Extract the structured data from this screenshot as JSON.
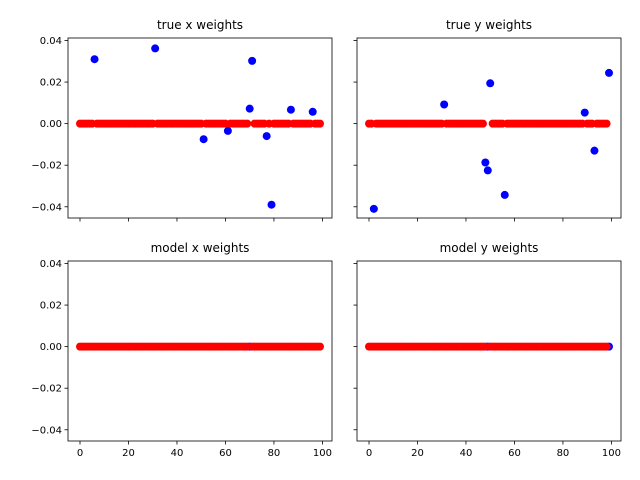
{
  "chart_data": [
    {
      "type": "scatter",
      "title": "true x weights",
      "xlim": [
        -4.95,
        103.95
      ],
      "ylim": [
        -0.0454,
        0.0412
      ],
      "xticks": [
        0,
        20,
        40,
        60,
        80,
        100
      ],
      "yticks": [
        -0.04,
        -0.02,
        0.0,
        0.02,
        0.04
      ],
      "show_xticklabels": false,
      "show_yticklabels": true,
      "series": [
        {
          "color": "#0000ff",
          "points": [
            [
              6,
              0.031
            ],
            [
              31,
              0.0362
            ],
            [
              51,
              -0.0075
            ],
            [
              61,
              -0.0035
            ],
            [
              70,
              0.0072
            ],
            [
              71,
              0.0302
            ],
            [
              77,
              -0.006
            ],
            [
              79,
              -0.039
            ],
            [
              87,
              0.0067
            ],
            [
              96,
              0.0057
            ]
          ]
        },
        {
          "color": "#ff0000",
          "x_range": [
            0,
            99
          ],
          "y_constant": 0.0,
          "skip_x": [
            6,
            31,
            51,
            61,
            70,
            71,
            77,
            79,
            87,
            96
          ]
        }
      ]
    },
    {
      "type": "scatter",
      "title": "true y weights",
      "xlim": [
        -4.95,
        103.95
      ],
      "ylim": [
        -0.0454,
        0.0412
      ],
      "xticks": [
        0,
        20,
        40,
        60,
        80,
        100
      ],
      "yticks": [
        -0.04,
        -0.02,
        0.0,
        0.02,
        0.04
      ],
      "show_xticklabels": false,
      "show_yticklabels": false,
      "series": [
        {
          "color": "#0000ff",
          "points": [
            [
              2,
              -0.041
            ],
            [
              31,
              0.0092
            ],
            [
              48,
              -0.0187
            ],
            [
              49,
              -0.0225
            ],
            [
              50,
              0.0194
            ],
            [
              56,
              -0.0343
            ],
            [
              89,
              0.0053
            ],
            [
              93,
              -0.013
            ],
            [
              99,
              0.0244
            ]
          ]
        },
        {
          "color": "#ff0000",
          "x_range": [
            0,
            99
          ],
          "y_constant": 0.0,
          "skip_x": [
            2,
            31,
            48,
            49,
            50,
            56,
            89,
            93,
            99
          ]
        }
      ]
    },
    {
      "type": "scatter",
      "title": "model x weights",
      "xlim": [
        -4.95,
        103.95
      ],
      "ylim": [
        -0.0454,
        0.0412
      ],
      "xticks": [
        0,
        20,
        40,
        60,
        80,
        100
      ],
      "yticks": [
        -0.04,
        -0.02,
        0.0,
        0.02,
        0.04
      ],
      "show_xticklabels": true,
      "show_yticklabels": true,
      "series": [
        {
          "color": "#0000ff",
          "points": [
            [
              70,
              0.0
            ]
          ]
        },
        {
          "color": "#ff0000",
          "x_range": [
            0,
            99
          ],
          "y_constant": 0.0,
          "skip_x": [
            70
          ]
        }
      ]
    },
    {
      "type": "scatter",
      "title": "model y weights",
      "xlim": [
        -4.95,
        103.95
      ],
      "ylim": [
        -0.0454,
        0.0412
      ],
      "xticks": [
        0,
        20,
        40,
        60,
        80,
        100
      ],
      "yticks": [
        -0.04,
        -0.02,
        0.0,
        0.02,
        0.04
      ],
      "show_xticklabels": true,
      "show_yticklabels": false,
      "series": [
        {
          "color": "#0000ff",
          "points": [
            [
              49,
              0.0
            ],
            [
              99,
              0.0
            ]
          ]
        },
        {
          "color": "#ff0000",
          "x_range": [
            0,
            99
          ],
          "y_constant": 0.0,
          "skip_x": [
            49,
            99
          ]
        }
      ]
    }
  ]
}
